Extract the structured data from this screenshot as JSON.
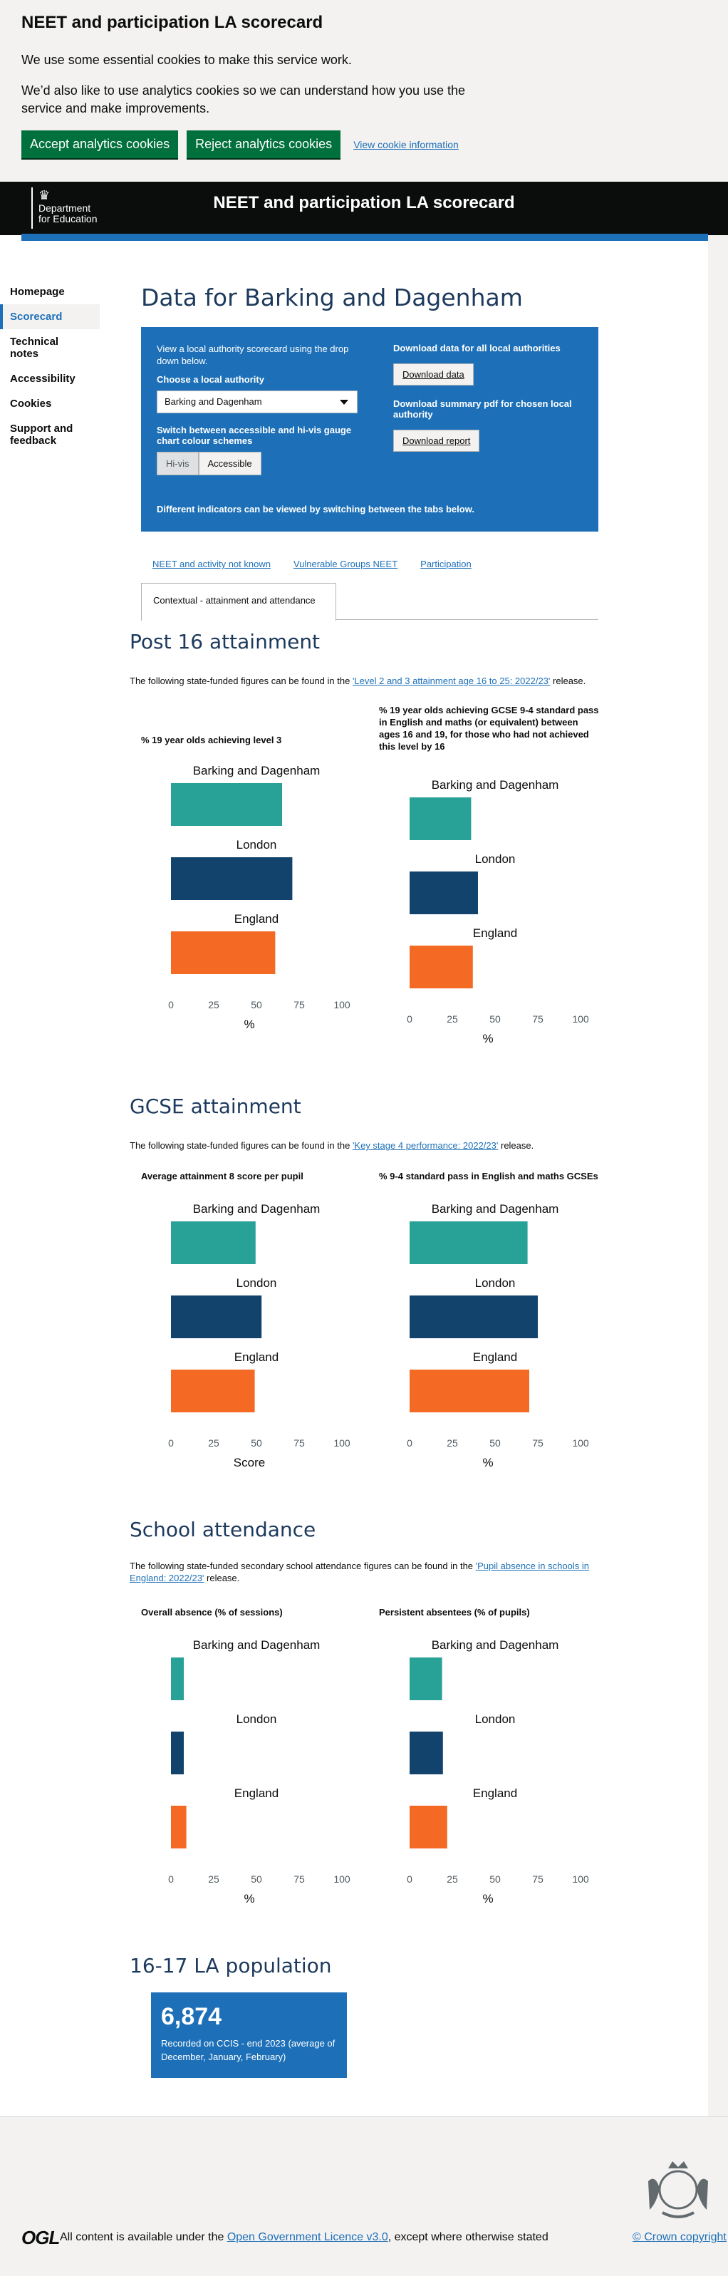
{
  "cookie": {
    "title": "NEET and participation LA scorecard",
    "p1": "We use some essential cookies to make this service work.",
    "p2": "We’d also like to use analytics cookies so we can understand how you use the service and make improvements.",
    "accept": "Accept analytics cookies",
    "reject": "Reject analytics cookies",
    "view": "View cookie information"
  },
  "header": {
    "dept_line1": "Department",
    "dept_line2": "for Education",
    "title": "NEET and participation LA scorecard"
  },
  "nav": [
    "Homepage",
    "Scorecard",
    "Technical notes",
    "Accessibility",
    "Cookies",
    "Support and feedback"
  ],
  "main": {
    "title": "Data for Barking and Dagenham",
    "panel": {
      "intro": "View a local authority scorecard using the drop down below.",
      "choose_label": "Choose a local authority",
      "selected_la": "Barking and Dagenham",
      "switch_label": "Switch between accessible and hi-vis gauge chart colour schemes",
      "toggle_hivis": "Hi-vis",
      "toggle_accessible": "Accessible",
      "download_all_label": "Download data for all local authorities",
      "download_data": "Download data",
      "download_pdf_label": "Download summary pdf for chosen local authority",
      "download_report": "Download report",
      "footer_note": "Different indicators can be viewed by switching between the tabs below."
    },
    "tabs": [
      "NEET and activity not known",
      "Vulnerable Groups NEET",
      "Participation",
      "Contextual - attainment and attendance"
    ]
  },
  "sections": {
    "post16": {
      "title": "Post 16 attainment",
      "intro_before": "The following state-funded figures can be found in the ",
      "intro_link": "'Level 2 and 3 attainment age 16 to 25: 2022/23'",
      "intro_after": " release."
    },
    "gcse": {
      "title": "GCSE attainment",
      "intro_before": "The following state-funded figures can be found in the ",
      "intro_link": "'Key stage 4 performance: 2022/23'",
      "intro_after": " release."
    },
    "attendance": {
      "title": "School attendance",
      "intro_before": "The following state-funded secondary school attendance figures can be found in the ",
      "intro_link": "'Pupil absence in schools in England: 2022/23'",
      "intro_after": " release."
    },
    "population": {
      "title": "16-17 LA population",
      "value": "6,874",
      "caption": "Recorded on CCIS - end 2023 (average of December, January, February)"
    }
  },
  "colors": {
    "la": "#28a197",
    "london": "#12436d",
    "england": "#f46a25",
    "panel": "#1d70b8"
  },
  "chart_data": [
    {
      "id": "c1",
      "type": "bar",
      "orientation": "horizontal",
      "title": "% 19 year olds achieving level 3",
      "categories": [
        "Barking and Dagenham",
        "London",
        "England"
      ],
      "values": [
        65,
        71,
        61
      ],
      "xlim": [
        0,
        100
      ],
      "xticks": [
        "0",
        "25",
        "50",
        "75",
        "100"
      ],
      "xlabel": "%"
    },
    {
      "id": "c2",
      "type": "bar",
      "orientation": "horizontal",
      "title": "% 19 year olds achieving GCSE 9-4 standard pass in English and maths (or equivalent) between ages 16 and 19, for those who had not achieved this level by 16",
      "categories": [
        "Barking and Dagenham",
        "London",
        "England"
      ],
      "values": [
        36,
        40,
        37
      ],
      "xlim": [
        0,
        100
      ],
      "xticks": [
        "0",
        "25",
        "50",
        "75",
        "100"
      ],
      "xlabel": "%"
    },
    {
      "id": "c3",
      "type": "bar",
      "orientation": "horizontal",
      "title": "Average attainment 8 score per pupil",
      "categories": [
        "Barking and Dagenham",
        "London",
        "England"
      ],
      "values": [
        49.5,
        53,
        49
      ],
      "xlim": [
        0,
        100
      ],
      "xticks": [
        "0",
        "25",
        "50",
        "75",
        "100"
      ],
      "xlabel": "Score"
    },
    {
      "id": "c4",
      "type": "bar",
      "orientation": "horizontal",
      "title": "% 9-4 standard pass in English and maths GCSEs",
      "categories": [
        "Barking and Dagenham",
        "London",
        "England"
      ],
      "values": [
        69,
        75,
        70
      ],
      "xlim": [
        0,
        100
      ],
      "xticks": [
        "0",
        "25",
        "50",
        "75",
        "100"
      ],
      "xlabel": "%"
    },
    {
      "id": "c5",
      "type": "bar",
      "orientation": "horizontal",
      "title": "Overall absence (% of sessions)",
      "categories": [
        "Barking and Dagenham",
        "London",
        "England"
      ],
      "values": [
        7.5,
        7.5,
        9
      ],
      "xlim": [
        0,
        100
      ],
      "xticks": [
        "0",
        "25",
        "50",
        "75",
        "100"
      ],
      "xlabel": "%"
    },
    {
      "id": "c6",
      "type": "bar",
      "orientation": "horizontal",
      "title": "Persistent absentees (% of pupils)",
      "categories": [
        "Barking and Dagenham",
        "London",
        "England"
      ],
      "values": [
        19,
        19.5,
        22
      ],
      "xlim": [
        0,
        100
      ],
      "xticks": [
        "0",
        "25",
        "50",
        "75",
        "100"
      ],
      "xlabel": "%"
    }
  ],
  "footer": {
    "ogl": "OGL",
    "text_before": "All content is available under the ",
    "licence_link": "Open Government Licence v3.0",
    "text_after": ", except where otherwise stated",
    "copyright": "© Crown copyright"
  }
}
